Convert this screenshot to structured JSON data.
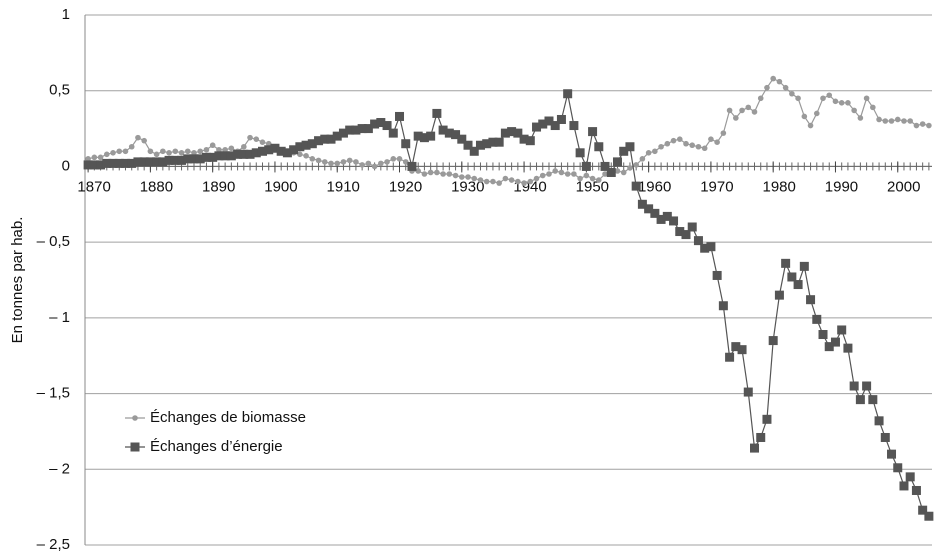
{
  "chart_data": {
    "type": "line",
    "y_label": "En tonnes par hab.",
    "x": [
      1870,
      1871,
      1872,
      1873,
      1874,
      1875,
      1876,
      1877,
      1878,
      1879,
      1880,
      1881,
      1882,
      1883,
      1884,
      1885,
      1886,
      1887,
      1888,
      1889,
      1890,
      1891,
      1892,
      1893,
      1894,
      1895,
      1896,
      1897,
      1898,
      1899,
      1900,
      1901,
      1902,
      1903,
      1904,
      1905,
      1906,
      1907,
      1908,
      1909,
      1910,
      1911,
      1912,
      1913,
      1914,
      1915,
      1916,
      1917,
      1918,
      1919,
      1920,
      1921,
      1922,
      1923,
      1924,
      1925,
      1926,
      1927,
      1928,
      1929,
      1930,
      1931,
      1932,
      1933,
      1934,
      1935,
      1936,
      1937,
      1938,
      1939,
      1940,
      1941,
      1942,
      1943,
      1944,
      1945,
      1946,
      1947,
      1948,
      1949,
      1950,
      1951,
      1952,
      1953,
      1954,
      1955,
      1956,
      1957,
      1958,
      1959,
      1960,
      1961,
      1962,
      1963,
      1964,
      1965,
      1966,
      1967,
      1968,
      1969,
      1970,
      1971,
      1972,
      1973,
      1974,
      1975,
      1976,
      1977,
      1978,
      1979,
      1980,
      1981,
      1982,
      1983,
      1984,
      1985,
      1986,
      1987,
      1988,
      1989,
      1990,
      1991,
      1992,
      1993,
      1994,
      1995,
      1996,
      1997,
      1998,
      1999,
      2000,
      2001,
      2002,
      2003,
      2004,
      2005
    ],
    "series": [
      {
        "name": "Échanges de biomasse",
        "color": "#9a9a9a",
        "marker": "circle",
        "values": [
          0.05,
          0.06,
          0.06,
          0.08,
          0.09,
          0.1,
          0.1,
          0.13,
          0.19,
          0.17,
          0.1,
          0.08,
          0.1,
          0.09,
          0.1,
          0.09,
          0.1,
          0.09,
          0.1,
          0.11,
          0.14,
          0.11,
          0.11,
          0.12,
          0.1,
          0.13,
          0.19,
          0.18,
          0.16,
          0.15,
          0.12,
          0.1,
          0.09,
          0.09,
          0.08,
          0.07,
          0.05,
          0.04,
          0.03,
          0.02,
          0.02,
          0.03,
          0.04,
          0.03,
          0.01,
          0.02,
          0.0,
          0.02,
          0.03,
          0.05,
          0.05,
          0.03,
          -0.03,
          -0.03,
          -0.05,
          -0.04,
          -0.04,
          -0.05,
          -0.05,
          -0.06,
          -0.07,
          -0.07,
          -0.08,
          -0.09,
          -0.1,
          -0.1,
          -0.11,
          -0.08,
          -0.09,
          -0.1,
          -0.11,
          -0.1,
          -0.08,
          -0.06,
          -0.05,
          -0.03,
          -0.04,
          -0.05,
          -0.05,
          -0.08,
          -0.06,
          -0.08,
          -0.09,
          -0.05,
          -0.05,
          -0.03,
          -0.04,
          -0.01,
          0.01,
          0.05,
          0.09,
          0.1,
          0.13,
          0.15,
          0.17,
          0.18,
          0.15,
          0.14,
          0.13,
          0.12,
          0.18,
          0.16,
          0.22,
          0.37,
          0.32,
          0.37,
          0.39,
          0.36,
          0.45,
          0.52,
          0.58,
          0.56,
          0.52,
          0.48,
          0.45,
          0.33,
          0.27,
          0.35,
          0.45,
          0.47,
          0.43,
          0.42,
          0.42,
          0.37,
          0.32,
          0.45,
          0.39,
          0.31,
          0.3,
          0.3,
          0.31,
          0.3,
          0.3,
          0.27,
          0.28,
          0.27
        ]
      },
      {
        "name": "Échanges d’énergie",
        "color": "#555555",
        "marker": "square",
        "values": [
          0.01,
          0.01,
          0.01,
          0.02,
          0.02,
          0.02,
          0.02,
          0.02,
          0.03,
          0.03,
          0.03,
          0.03,
          0.03,
          0.04,
          0.04,
          0.04,
          0.05,
          0.05,
          0.05,
          0.06,
          0.06,
          0.07,
          0.07,
          0.07,
          0.08,
          0.08,
          0.08,
          0.09,
          0.1,
          0.11,
          0.12,
          0.1,
          0.09,
          0.11,
          0.13,
          0.14,
          0.15,
          0.17,
          0.18,
          0.18,
          0.2,
          0.22,
          0.24,
          0.24,
          0.25,
          0.25,
          0.28,
          0.29,
          0.27,
          0.22,
          0.33,
          0.15,
          0.0,
          0.2,
          0.19,
          0.2,
          0.35,
          0.24,
          0.22,
          0.21,
          0.18,
          0.14,
          0.1,
          0.14,
          0.15,
          0.16,
          0.16,
          0.22,
          0.23,
          0.22,
          0.18,
          0.17,
          0.26,
          0.28,
          0.3,
          0.27,
          0.31,
          0.48,
          0.27,
          0.09,
          0.0,
          0.23,
          0.13,
          0.0,
          -0.04,
          0.03,
          0.1,
          0.13,
          -0.13,
          -0.25,
          -0.28,
          -0.31,
          -0.35,
          -0.33,
          -0.36,
          -0.43,
          -0.45,
          -0.4,
          -0.49,
          -0.54,
          -0.53,
          -0.72,
          -0.92,
          -1.26,
          -1.19,
          -1.21,
          -1.49,
          -1.86,
          -1.79,
          -1.67,
          -1.15,
          -0.85,
          -0.64,
          -0.73,
          -0.78,
          -0.66,
          -0.88,
          -1.01,
          -1.11,
          -1.19,
          -1.16,
          -1.08,
          -1.2,
          -1.45,
          -1.54,
          -1.45,
          -1.54,
          -1.68,
          -1.79,
          -1.9,
          -1.99,
          -2.11,
          -2.05,
          -2.14,
          -2.27,
          -2.31
        ]
      }
    ],
    "xlim": [
      1869.5,
      2005.5
    ],
    "xticks": [
      1870,
      1880,
      1890,
      1900,
      1910,
      1920,
      1930,
      1940,
      1950,
      1960,
      1970,
      1980,
      1990,
      2000
    ],
    "ylim": [
      -2.5,
      1
    ],
    "yticks": [
      {
        "value": -2.5,
        "label": "– 2,5"
      },
      {
        "value": -2,
        "label": "– 2"
      },
      {
        "value": -1.5,
        "label": "– 1,5"
      },
      {
        "value": -1,
        "label": "– 1"
      },
      {
        "value": -0.5,
        "label": "– 0,5"
      },
      0,
      {
        "value": 0.5,
        "label": "0,5"
      },
      1
    ],
    "grid": true,
    "legend": "lower left"
  }
}
